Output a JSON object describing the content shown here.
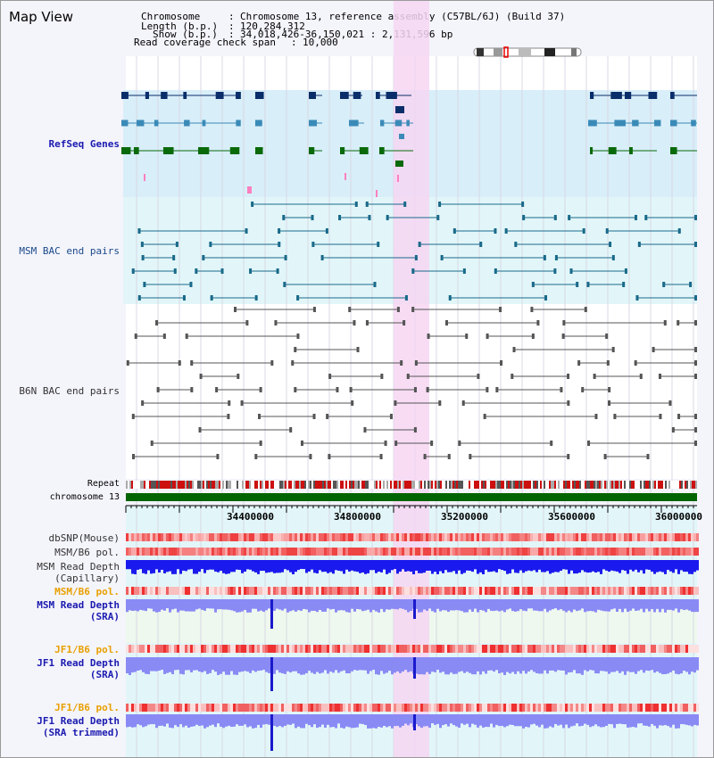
{
  "panel_title": "Map View",
  "info": {
    "chromosome_label": "Chromosome",
    "chromosome_value": "Chromosome 13, reference assembly (C57BL/6J) (Build 37)",
    "length_label": "Length (b.p.)",
    "length_value": "120,284,312",
    "show_label": "Show (b.p.)",
    "show_value": "34,018,426-36,150,021 : 2,131,596 bp",
    "coverage_label": "Read coverage check span",
    "coverage_value": "10,000"
  },
  "tracks": {
    "refseq": "RefSeq Genes",
    "msm_bac": "MSM BAC end pairs",
    "b6n_bac": "B6N BAC end pairs",
    "repeat": "Repeat",
    "chromosome": "chromosome 13",
    "dbsnp": "dbSNP(Mouse)",
    "msm_b6_pol_1": "MSM/B6 pol.",
    "msm_read_depth_cap_1": "MSM Read Depth",
    "msm_read_depth_cap_2": "(Capillary)",
    "msm_b6_pol_2": "MSM/B6 pol.",
    "msm_read_depth_sra_1": "MSM Read Depth",
    "msm_read_depth_sra_2": "(SRA)",
    "jf1_b6_pol_1": "JF1/B6 pol.",
    "jf1_read_depth_sra_1": "JF1 Read Depth",
    "jf1_read_depth_sra_2": "(SRA)",
    "jf1_b6_pol_2": "JF1/B6 pol.",
    "jf1_read_depth_trim_1": "JF1 Read Depth",
    "jf1_read_depth_trim_2": "(SRA trimmed)"
  },
  "axis": {
    "ticks": [
      "34400000",
      "34800000",
      "35200000",
      "35600000",
      "36000000"
    ]
  },
  "colors": {
    "highlight": "#f6d6f2",
    "refseq_bg": "#d8eef9",
    "msm_bg": "#e2f6f9",
    "chromosome_bar": "#006400",
    "depth_blue": "#1a1aee",
    "depth_light": "#8a8af5"
  }
}
